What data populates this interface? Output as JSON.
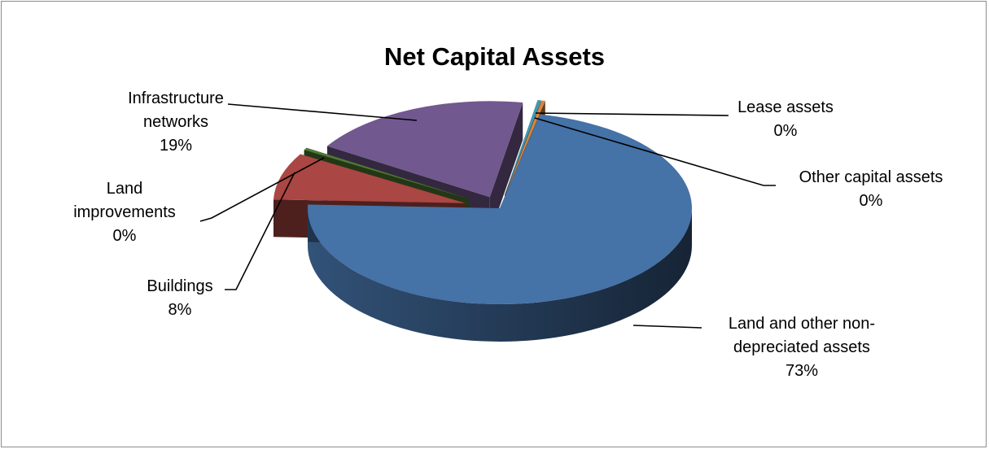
{
  "chart_data": {
    "type": "pie",
    "title": "Net Capital Assets",
    "three_d": true,
    "slices": [
      {
        "name": "Land and other non-depreciated assets",
        "line1": "Land and other non-",
        "line2": "depreciated assets",
        "value": 73,
        "label": "73%",
        "color": "#4572a7"
      },
      {
        "name": "Buildings",
        "line1": "Buildings",
        "value": 8,
        "label": "8%",
        "color": "#aa4643"
      },
      {
        "name": "Land improvements",
        "line1": "Land",
        "line2": "improvements",
        "value": 0.4,
        "label": "0%",
        "color": "#4e7a32"
      },
      {
        "name": "Infrastructure networks",
        "line1": "Infrastructure",
        "line2": "networks",
        "value": 19,
        "label": "19%",
        "color": "#71588f"
      },
      {
        "name": "Lease assets",
        "line1": "Lease assets",
        "value": 0.3,
        "label": "0%",
        "color": "#4198af"
      },
      {
        "name": "Other capital assets",
        "line1": "Other capital assets",
        "value": 0.3,
        "label": "0%",
        "color": "#db843d"
      }
    ]
  }
}
